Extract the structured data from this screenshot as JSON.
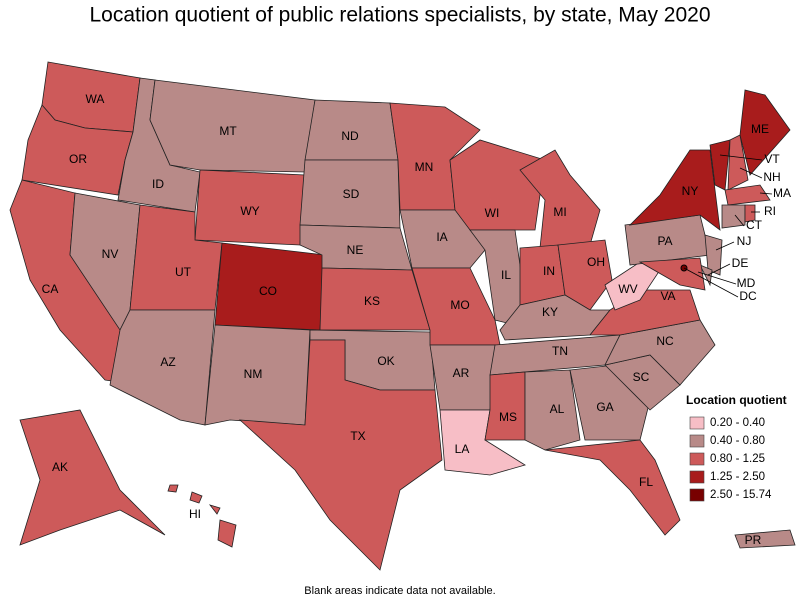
{
  "title": "Location quotient of public relations specialists, by state, May 2020",
  "footnote": "Blank areas indicate data not available.",
  "legend": {
    "title": "Location quotient",
    "items": [
      {
        "label": "0.20 - 0.40",
        "color": "#f7bec6"
      },
      {
        "label": "0.40 - 0.80",
        "color": "#b88a88"
      },
      {
        "label": "0.80 - 1.25",
        "color": "#cd5a5a"
      },
      {
        "label": "1.25 - 2.50",
        "color": "#a81c1c"
      },
      {
        "label": "2.50 - 15.74",
        "color": "#780000"
      }
    ]
  },
  "states": [
    {
      "label": "WA",
      "color": "#cd5a5a"
    },
    {
      "label": "OR",
      "color": "#cd5a5a"
    },
    {
      "label": "CA",
      "color": "#cd5a5a"
    },
    {
      "label": "NV",
      "color": "#b88a88"
    },
    {
      "label": "ID",
      "color": "#b88a88"
    },
    {
      "label": "MT",
      "color": "#b88a88"
    },
    {
      "label": "WY",
      "color": "#cd5a5a"
    },
    {
      "label": "UT",
      "color": "#cd5a5a"
    },
    {
      "label": "AZ",
      "color": "#b88a88"
    },
    {
      "label": "CO",
      "color": "#a81c1c"
    },
    {
      "label": "NM",
      "color": "#b88a88"
    },
    {
      "label": "ND",
      "color": "#b88a88"
    },
    {
      "label": "SD",
      "color": "#b88a88"
    },
    {
      "label": "NE",
      "color": "#b88a88"
    },
    {
      "label": "KS",
      "color": "#cd5a5a"
    },
    {
      "label": "OK",
      "color": "#b88a88"
    },
    {
      "label": "TX",
      "color": "#cd5a5a"
    },
    {
      "label": "MN",
      "color": "#cd5a5a"
    },
    {
      "label": "IA",
      "color": "#b88a88"
    },
    {
      "label": "MO",
      "color": "#cd5a5a"
    },
    {
      "label": "AR",
      "color": "#b88a88"
    },
    {
      "label": "LA",
      "color": "#f7bec6"
    },
    {
      "label": "WI",
      "color": "#cd5a5a"
    },
    {
      "label": "IL",
      "color": "#b88a88"
    },
    {
      "label": "MI",
      "color": "#cd5a5a"
    },
    {
      "label": "IN",
      "color": "#cd5a5a"
    },
    {
      "label": "OH",
      "color": "#cd5a5a"
    },
    {
      "label": "KY",
      "color": "#b88a88"
    },
    {
      "label": "TN",
      "color": "#b88a88"
    },
    {
      "label": "MS",
      "color": "#cd5a5a"
    },
    {
      "label": "AL",
      "color": "#b88a88"
    },
    {
      "label": "GA",
      "color": "#b88a88"
    },
    {
      "label": "FL",
      "color": "#cd5a5a"
    },
    {
      "label": "SC",
      "color": "#b88a88"
    },
    {
      "label": "NC",
      "color": "#b88a88"
    },
    {
      "label": "VA",
      "color": "#cd5a5a"
    },
    {
      "label": "WV",
      "color": "#f7bec6"
    },
    {
      "label": "PA",
      "color": "#b88a88"
    },
    {
      "label": "NY",
      "color": "#a81c1c"
    },
    {
      "label": "VT",
      "color": "#a81c1c"
    },
    {
      "label": "NH",
      "color": "#cd5a5a"
    },
    {
      "label": "ME",
      "color": "#a81c1c"
    },
    {
      "label": "MA",
      "color": "#cd5a5a"
    },
    {
      "label": "CT",
      "color": "#b88a88"
    },
    {
      "label": "RI",
      "color": "#cd5a5a"
    },
    {
      "label": "NJ",
      "color": "#b88a88"
    },
    {
      "label": "DE",
      "color": "#b88a88"
    },
    {
      "label": "MD",
      "color": "#cd5a5a"
    },
    {
      "label": "DC",
      "color": "#780000"
    },
    {
      "label": "AK",
      "color": "#cd5a5a"
    },
    {
      "label": "HI",
      "color": "#cd5a5a"
    },
    {
      "label": "PR",
      "color": "#b88a88"
    }
  ]
}
